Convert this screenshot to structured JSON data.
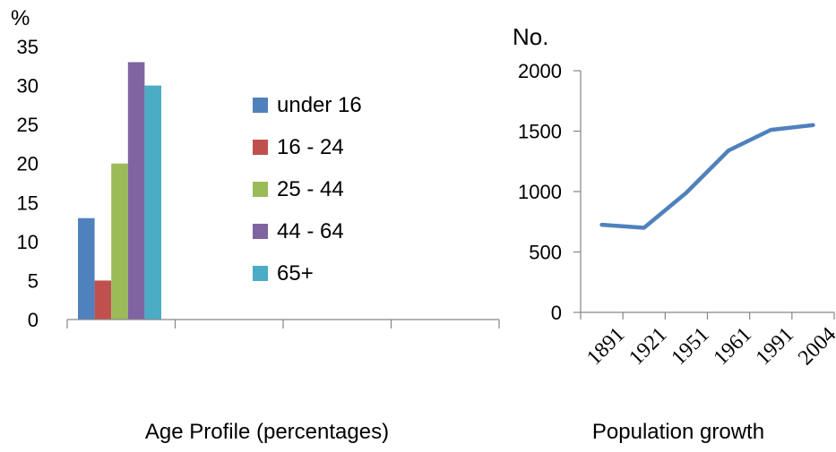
{
  "chart_data": [
    {
      "type": "bar",
      "title": "Age Profile (percentages)",
      "ylabel": "%",
      "ylim": [
        0,
        35
      ],
      "yticks": [
        0,
        5,
        10,
        15,
        20,
        25,
        30,
        35
      ],
      "categories": [
        ""
      ],
      "series": [
        {
          "name": "under 16",
          "color": "#4F81BD",
          "values": [
            13
          ]
        },
        {
          "name": "16 - 24",
          "color": "#C0504D",
          "values": [
            5
          ]
        },
        {
          "name": "25 - 44",
          "color": "#9BBB59",
          "values": [
            20
          ]
        },
        {
          "name": "44 - 64",
          "color": "#8064A2",
          "values": [
            33
          ]
        },
        {
          "name": "65+",
          "color": "#4BACC6",
          "values": [
            30
          ]
        }
      ],
      "legend_position": "right",
      "grid": false
    },
    {
      "type": "line",
      "title": "Population growth",
      "ylabel": "No.",
      "ylim": [
        0,
        2000
      ],
      "yticks": [
        0,
        500,
        1000,
        1500,
        2000
      ],
      "x": [
        "1891",
        "1921",
        "1951",
        "1961",
        "1991",
        "2004"
      ],
      "series": [
        {
          "color": "#4F81BD",
          "values": [
            725,
            700,
            990,
            1340,
            1510,
            1550
          ]
        }
      ],
      "grid": false
    }
  ]
}
